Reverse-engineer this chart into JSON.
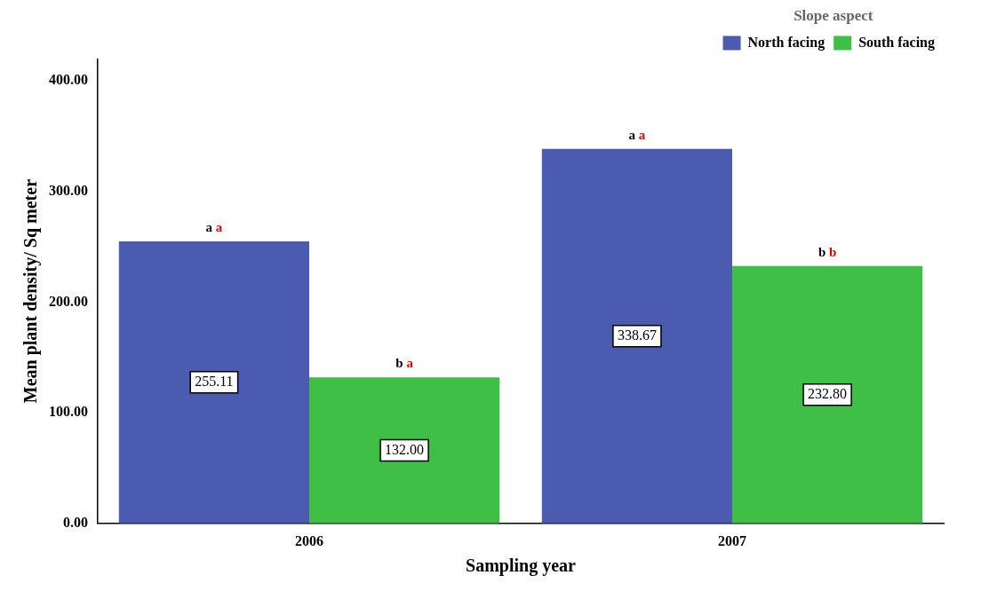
{
  "chart_data": {
    "type": "bar",
    "xlabel": "Sampling year",
    "ylabel": "Mean plant density/ Sq meter",
    "legend_title": "Slope aspect",
    "categories": [
      "2006",
      "2007"
    ],
    "series": [
      {
        "name": "North facing",
        "color": "#4a5bb0",
        "values": [
          255.11,
          338.67
        ],
        "value_labels": [
          "255.11",
          "338.67"
        ]
      },
      {
        "name": "South facing",
        "color": "#3fbf45",
        "values": [
          132.0,
          232.8
        ],
        "value_labels": [
          "132.00",
          "232.80"
        ]
      }
    ],
    "ylim": [
      0,
      420
    ],
    "yticks": [
      {
        "value": 0,
        "label": "0.00"
      },
      {
        "value": 100,
        "label": "100.00"
      },
      {
        "value": 200,
        "label": "200.00"
      },
      {
        "value": 300,
        "label": "300.00"
      },
      {
        "value": 400,
        "label": "400.00"
      }
    ],
    "grid": false,
    "legend": "top right",
    "annotations": [
      "a a",
      "b a",
      "a a",
      "b b"
    ]
  }
}
